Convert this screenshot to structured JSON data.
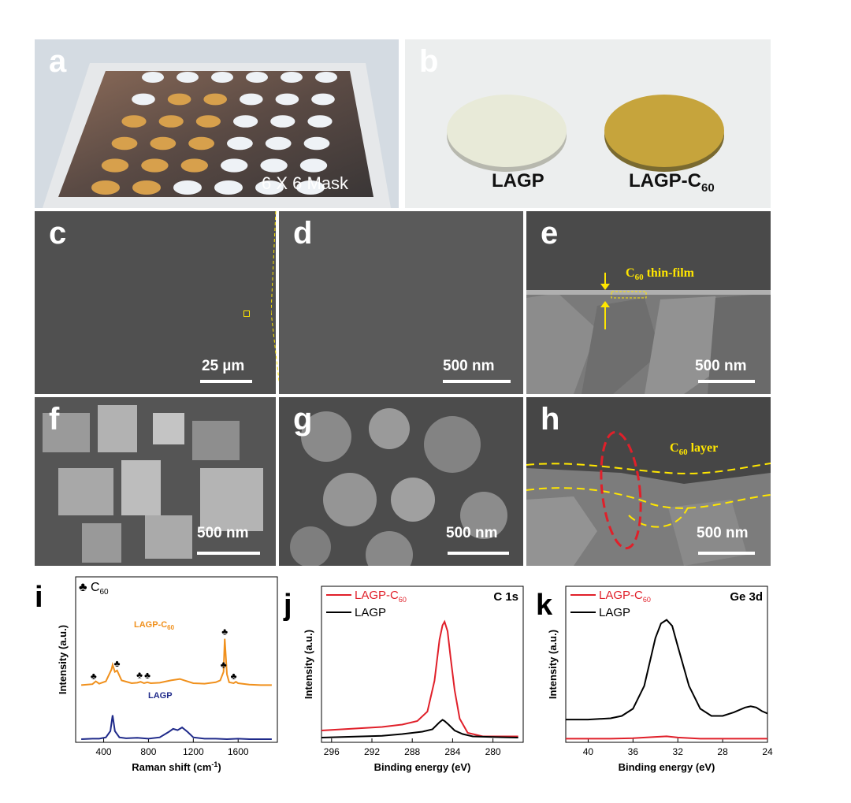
{
  "panels": {
    "a": {
      "label": "a",
      "caption": "6 X 6 Mask"
    },
    "b": {
      "label": "b",
      "sample1": "LAGP",
      "sample2_main": "LAGP-C",
      "sample2_sub": "60"
    },
    "c": {
      "label": "c",
      "scale": "25 µm"
    },
    "d": {
      "label": "d",
      "scale": "500 nm"
    },
    "e": {
      "label": "e",
      "scale": "500 nm",
      "annot_main": "C",
      "annot_sub": "60",
      "annot_rest": " thin-film"
    },
    "f": {
      "label": "f",
      "scale": "500 nm"
    },
    "g": {
      "label": "g",
      "scale": "500 nm"
    },
    "h": {
      "label": "h",
      "scale": "500 nm",
      "annot_main": "C",
      "annot_sub": "60",
      "annot_rest": " layer"
    }
  },
  "chart_data": [
    {
      "panel": "i",
      "type": "line",
      "xlabel": "Raman shift (cm",
      "xlabel_sup": "-1",
      "xlabel_end": ")",
      "ylabel": "Intensity (a.u.)",
      "xticks": [
        "400",
        "800",
        "1200",
        "1600"
      ],
      "legend_main": "♣ C",
      "legend_sub": "60",
      "series": [
        {
          "name": "LAGP-C",
          "name_sub": "60",
          "color": "#f0901c",
          "x": [
            200,
            300,
            330,
            360,
            420,
            470,
            480,
            500,
            520,
            560,
            650,
            700,
            730,
            760,
            790,
            820,
            900,
            1000,
            1080,
            1120,
            1200,
            1300,
            1400,
            1440,
            1470,
            1480,
            1500,
            1520,
            1560,
            1580,
            1600,
            1700,
            1800,
            1900
          ],
          "y": [
            0.02,
            0.04,
            0.1,
            0.05,
            0.1,
            0.35,
            0.45,
            0.3,
            0.33,
            0.12,
            0.06,
            0.07,
            0.09,
            0.06,
            0.08,
            0.06,
            0.07,
            0.12,
            0.15,
            0.12,
            0.06,
            0.05,
            0.08,
            0.12,
            0.3,
            1.0,
            0.25,
            0.08,
            0.06,
            0.09,
            0.06,
            0.03,
            0.02,
            0.02
          ]
        },
        {
          "name": "LAGP",
          "name_sub": "",
          "color": "#1f2a8a",
          "x": [
            200,
            300,
            360,
            420,
            460,
            480,
            500,
            540,
            600,
            700,
            800,
            900,
            980,
            1020,
            1060,
            1100,
            1150,
            1200,
            1300,
            1400,
            1500,
            1600,
            1700,
            1800,
            1900
          ],
          "y": [
            0.02,
            0.03,
            0.03,
            0.06,
            0.2,
            0.55,
            0.2,
            0.06,
            0.04,
            0.05,
            0.03,
            0.06,
            0.18,
            0.25,
            0.22,
            0.28,
            0.18,
            0.06,
            0.03,
            0.03,
            0.02,
            0.03,
            0.02,
            0.02,
            0.02
          ]
        }
      ],
      "markers_x": [
        310,
        520,
        720,
        790,
        1470,
        1480,
        1560
      ]
    },
    {
      "panel": "j",
      "type": "line",
      "title": "C 1s",
      "xlabel": "Binding energy (eV)",
      "ylabel": "Intensity (a.u.)",
      "xticks": [
        "296",
        "292",
        "288",
        "284",
        "280"
      ],
      "series": [
        {
          "name": "LAGP-C",
          "name_sub": "60",
          "color": "#e0202a",
          "x": [
            297,
            295,
            293,
            291,
            289,
            287.5,
            286.5,
            285.8,
            285.3,
            285.0,
            284.8,
            284.5,
            284.2,
            283.8,
            283.3,
            282.5,
            281,
            279,
            277.5
          ],
          "y": [
            0.08,
            0.09,
            0.1,
            0.11,
            0.13,
            0.16,
            0.24,
            0.5,
            0.85,
            0.97,
            1.0,
            0.92,
            0.7,
            0.42,
            0.18,
            0.06,
            0.03,
            0.03,
            0.03
          ]
        },
        {
          "name": "LAGP",
          "name_sub": "",
          "color": "#000000",
          "x": [
            297,
            295,
            293,
            291,
            289,
            287,
            286,
            285.3,
            285.0,
            284.8,
            284.4,
            283.8,
            283,
            282,
            280,
            277.5
          ],
          "y": [
            0.02,
            0.025,
            0.03,
            0.035,
            0.05,
            0.07,
            0.09,
            0.15,
            0.17,
            0.16,
            0.13,
            0.08,
            0.05,
            0.03,
            0.025,
            0.02
          ]
        }
      ]
    },
    {
      "panel": "k",
      "type": "line",
      "title": "Ge 3d",
      "xlabel": "Binding energy (eV)",
      "ylabel": "Intensity (a.u.)",
      "xticks": [
        "40",
        "36",
        "32",
        "28",
        "24"
      ],
      "series": [
        {
          "name": "LAGP-C",
          "name_sub": "60",
          "color": "#e0202a",
          "x": [
            42,
            40,
            38,
            36,
            34,
            33,
            32,
            30,
            28,
            26,
            24
          ],
          "y": [
            0.01,
            0.01,
            0.01,
            0.015,
            0.025,
            0.03,
            0.02,
            0.01,
            0.01,
            0.01,
            0.01
          ]
        },
        {
          "name": "LAGP",
          "name_sub": "",
          "color": "#000000",
          "x": [
            42,
            40,
            38,
            37,
            36,
            35,
            34.5,
            34,
            33.5,
            33,
            32.5,
            32,
            31,
            30,
            29,
            28,
            27,
            26,
            25.5,
            25,
            24.5,
            24
          ],
          "y": [
            0.17,
            0.17,
            0.18,
            0.2,
            0.26,
            0.45,
            0.65,
            0.85,
            0.97,
            1.0,
            0.95,
            0.78,
            0.45,
            0.26,
            0.2,
            0.2,
            0.23,
            0.27,
            0.28,
            0.27,
            0.24,
            0.22
          ]
        }
      ]
    }
  ]
}
